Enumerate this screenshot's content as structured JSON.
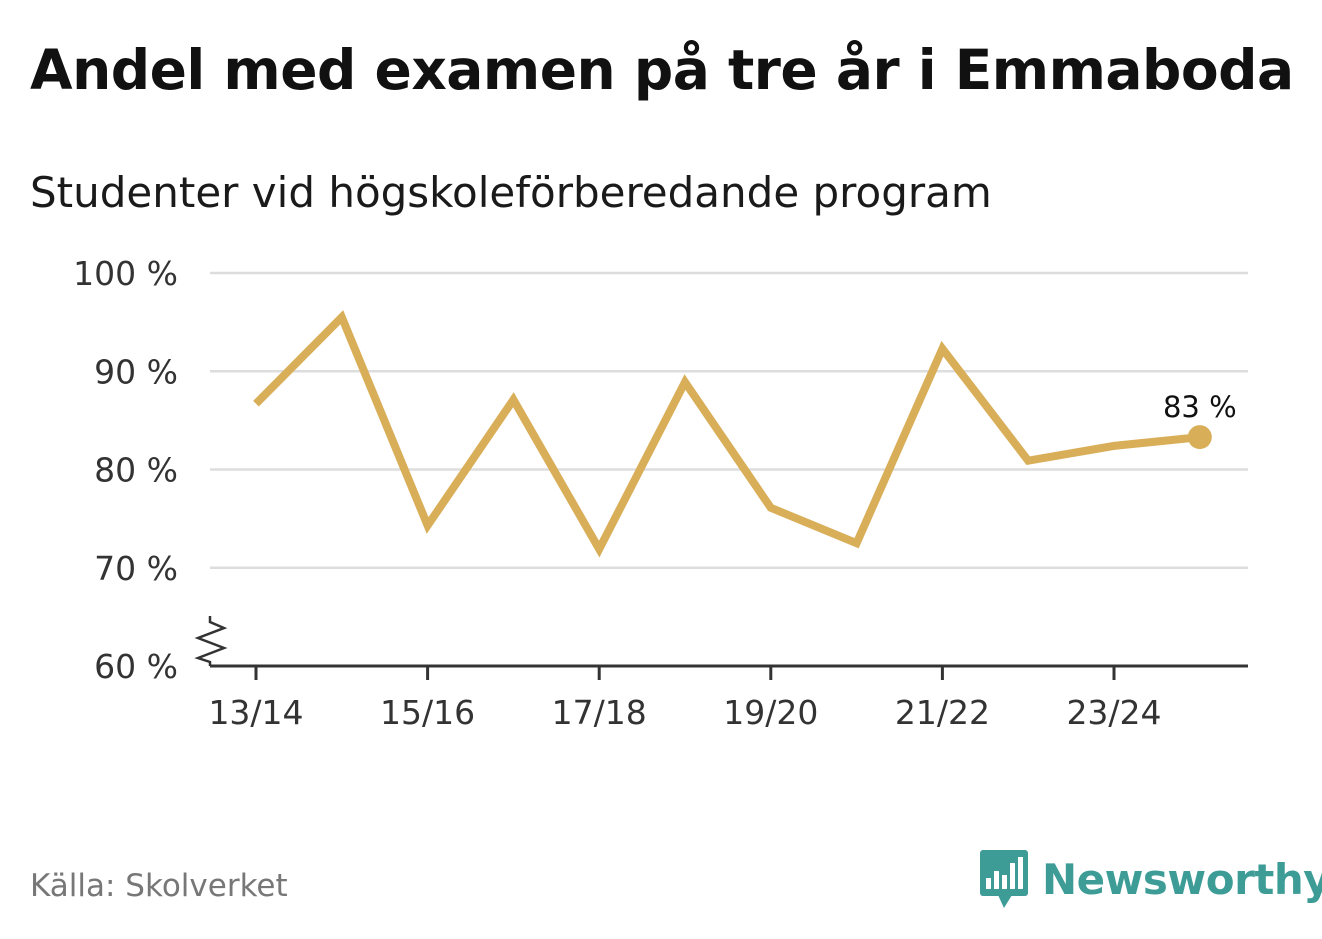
{
  "header": {
    "title": "Andel med examen på tre år i Emmaboda",
    "subtitle": "Studenter vid högskoleförberedande program"
  },
  "footer": {
    "source": "Källa: Skolverket",
    "brand": "Newsworthy"
  },
  "colors": {
    "line": "#d9ae58",
    "grid": "#dddddd",
    "axis": "#333333",
    "brand": "#3e9c97"
  },
  "chart_data": {
    "type": "line",
    "title": "Andel med examen på tre år i Emmaboda",
    "subtitle": "Studenter vid högskoleförberedande program",
    "xlabel": "",
    "ylabel": "",
    "ylim": [
      60,
      100
    ],
    "y_ticks": [
      60,
      70,
      80,
      90,
      100
    ],
    "y_tick_labels": [
      "60 %",
      "70 %",
      "80 %",
      "90 %",
      "100 %"
    ],
    "x_tick_labels": [
      "13/14",
      "15/16",
      "17/18",
      "19/20",
      "21/22",
      "23/24"
    ],
    "axis_break": true,
    "grid": true,
    "series": [
      {
        "name": "Andel med examen på tre år",
        "x": [
          "13/14",
          "14/15",
          "15/16",
          "16/17",
          "17/18",
          "18/19",
          "19/20",
          "20/21",
          "21/22",
          "22/23",
          "23/24",
          "24/25"
        ],
        "values": [
          86.7,
          95.5,
          74.3,
          87.1,
          71.9,
          88.9,
          76.1,
          72.5,
          92.3,
          80.9,
          82.4,
          83.3
        ]
      }
    ],
    "end_label": "83 %"
  }
}
